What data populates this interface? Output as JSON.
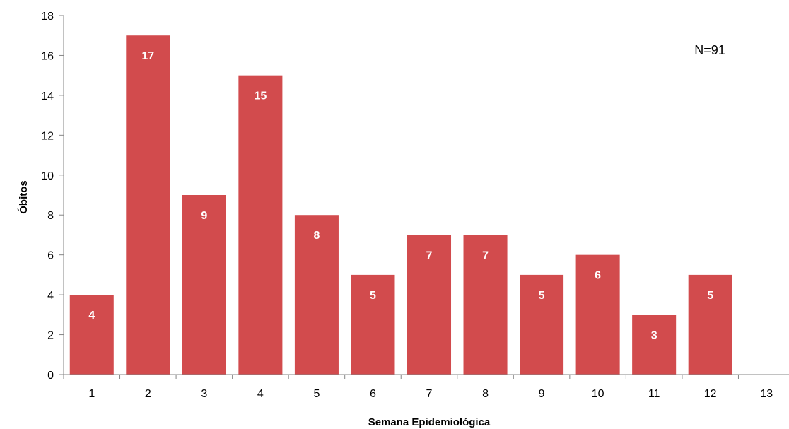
{
  "chart_data": {
    "type": "bar",
    "categories": [
      "1",
      "2",
      "3",
      "4",
      "5",
      "6",
      "7",
      "8",
      "9",
      "10",
      "11",
      "12",
      "13"
    ],
    "values": [
      4,
      17,
      9,
      15,
      8,
      5,
      7,
      7,
      5,
      6,
      3,
      5,
      null
    ],
    "data_labels": [
      "4",
      "17",
      "9",
      "15",
      "8",
      "5",
      "7",
      "7",
      "5",
      "6",
      "3",
      "5",
      ""
    ],
    "xlabel": "Semana Epidemiológica",
    "ylabel": "Óbitos",
    "ylim": [
      0,
      18
    ],
    "yticks": [
      0,
      2,
      4,
      6,
      8,
      10,
      12,
      14,
      16,
      18
    ],
    "ytick_labels": [
      "0",
      "2",
      "4",
      "6",
      "8",
      "10",
      "12",
      "14",
      "16",
      "18"
    ],
    "annotation": "N=91",
    "bar_color": "#d24b4d",
    "data_label_color": "#ffffff",
    "grid": false,
    "legend": "none"
  }
}
